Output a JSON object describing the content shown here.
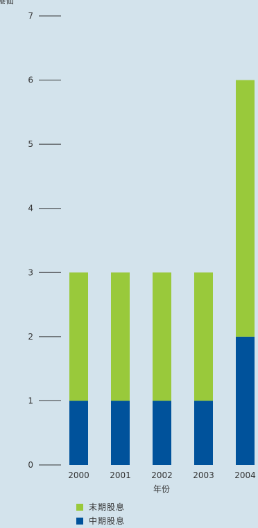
{
  "chart_data": {
    "type": "bar",
    "stacked": true,
    "ylabel": "港仙",
    "xlabel": "年份",
    "ylim": [
      0,
      7
    ],
    "yticks": [
      "0",
      "1",
      "2",
      "3",
      "4",
      "5",
      "6",
      "7"
    ],
    "categories": [
      "2000",
      "2001",
      "2002",
      "2003",
      "2004"
    ],
    "series": [
      {
        "name": "中期股息",
        "values": [
          1,
          1,
          1,
          1,
          2
        ],
        "color": "#00529b"
      },
      {
        "name": "末期股息",
        "values": [
          2,
          2,
          2,
          2,
          4
        ],
        "color": "#99c93b"
      }
    ],
    "legend_position": "bottom-left",
    "background_color": "#d3e3ec"
  }
}
